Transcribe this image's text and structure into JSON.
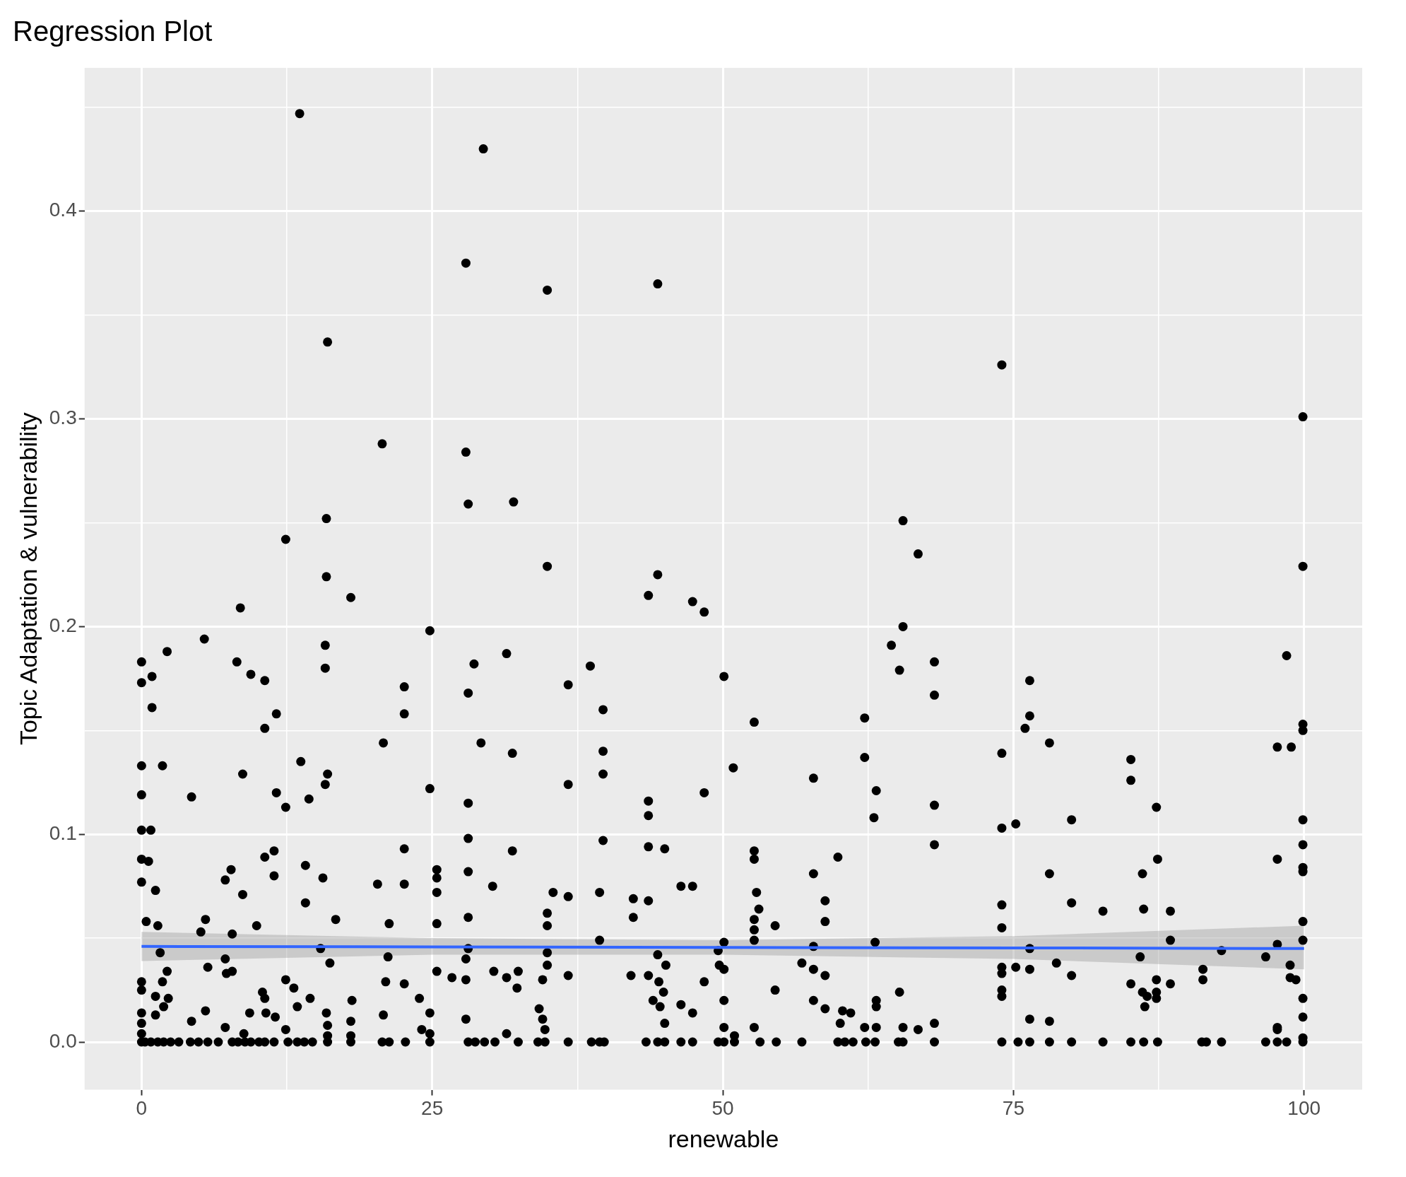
{
  "chart_data": {
    "type": "scatter",
    "title": "Regression Plot",
    "xlabel": "renewable",
    "ylabel": "Topic Adaptation & vulnerability",
    "marker": "circle",
    "grid": true,
    "xlim": [
      -4.9,
      105
    ],
    "ylim": [
      -0.023,
      0.469
    ],
    "xticks": [
      0,
      {
        "value": 12.5,
        "label": null
      },
      25,
      {
        "value": 37.5,
        "label": null
      },
      50,
      {
        "value": 62.5,
        "label": null
      },
      75,
      {
        "value": 87.5,
        "label": null
      },
      100
    ],
    "yticks": [
      {
        "value": 0,
        "label": "0.0"
      },
      {
        "value": 0.05,
        "label": null
      },
      {
        "value": 0.1,
        "label": "0.1"
      },
      {
        "value": 0.15,
        "label": null
      },
      {
        "value": 0.2,
        "label": "0.2"
      },
      {
        "value": 0.25,
        "label": null
      },
      {
        "value": 0.3,
        "label": "0.3"
      },
      {
        "value": 0.35,
        "label": null
      },
      {
        "value": 0.4,
        "label": "0.4"
      },
      {
        "value": 0.45,
        "label": null
      }
    ],
    "series": [
      {
        "type": "scatter",
        "color": "#000000",
        "x": [
          13.6,
          29.4,
          27.9,
          34.9,
          44.4,
          16.0,
          74.0,
          99.9,
          20.7,
          27.9,
          28.1,
          32.0,
          65.5,
          15.9,
          12.4,
          66.8,
          34.9,
          99.9,
          44.4,
          15.9,
          18.0,
          43.6,
          47.4,
          48.4,
          8.5,
          65.5,
          24.8,
          5.4,
          2.2,
          0,
          8.2,
          28.6,
          38.6,
          68.2,
          98.5,
          15.8,
          64.5,
          0.9,
          9.4,
          10.6,
          0,
          15.8,
          65.2,
          36.7,
          50.1,
          31.4,
          22.6,
          76.4,
          28.1,
          68.2,
          0.9,
          39.7,
          11.6,
          22.6,
          76.4,
          62.2,
          52.7,
          99.9,
          10.6,
          76.0,
          99.9,
          78.1,
          20.8,
          29.2,
          97.7,
          98.9,
          39.7,
          74.0,
          31.9,
          0,
          1.8,
          13.7,
          62.2,
          85.1,
          50.9,
          39.7,
          8.7,
          16.0,
          57.8,
          85.1,
          15.8,
          36.7,
          24.8,
          63.2,
          11.6,
          48.4,
          0,
          4.3,
          14.4,
          43.6,
          28.1,
          12.4,
          87.3,
          68.2,
          43.6,
          63.0,
          80.0,
          99.9,
          75.2,
          74.0,
          0,
          0.8,
          28.1,
          39.7,
          99.9,
          68.2,
          22.6,
          43.6,
          45.0,
          31.9,
          11.4,
          52.7,
          59.9,
          10.6,
          87.4,
          0,
          97.7,
          0.6,
          52.7,
          14.1,
          99.9,
          99.9,
          7.7,
          25.4,
          57.8,
          28.1,
          78.1,
          86.1,
          11.4,
          15.6,
          25.4,
          0,
          7.2,
          20.3,
          22.6,
          30.2,
          47.4,
          46.4,
          1.2,
          35.4,
          52.9,
          25.4,
          39.4,
          36.7,
          8.7,
          43.6,
          42.3,
          58.8,
          80.0,
          14.1,
          74.0,
          82.7,
          86.2,
          88.5,
          53.1,
          34.9,
          28.1,
          16.7,
          42.3,
          58.8,
          5.5,
          52.7,
          99.9,
          0.4,
          21.3,
          25.4,
          9.9,
          34.9,
          54.5,
          74.0,
          1.4,
          5.1,
          52.7,
          7.8,
          99.9,
          88.5,
          39.4,
          50.1,
          63.1,
          52.7,
          28.1,
          76.4,
          15.4,
          97.7,
          57.8,
          92.9,
          49.6,
          1.6,
          34.9,
          44.4,
          85.9,
          21.2,
          96.7,
          7.2,
          16.2,
          27.9,
          56.8,
          78.7,
          45.1,
          98.8,
          49.7,
          5.7,
          75.2,
          34.9,
          74.0,
          76.4,
          57.8,
          50.1,
          91.3,
          25.4,
          30.3,
          32.4,
          7.8,
          2.2,
          74.0,
          7.3,
          26.7,
          31.4,
          36.7,
          42.1,
          43.6,
          58.8,
          80.0,
          98.8,
          99.3,
          91.3,
          21.0,
          12.4,
          48.4,
          27.9,
          44.5,
          85.1,
          88.5,
          87.3,
          1.8,
          0,
          22.6,
          34.5,
          13.1,
          32.3,
          54.5,
          74.0,
          44.9,
          65.2,
          86.1,
          0,
          10.4,
          87.3,
          74.0,
          86.5,
          99.9,
          2.3,
          14.5,
          23.9,
          10.6,
          18.1,
          1.2,
          50.1,
          63.2,
          57.8,
          87.3,
          44.0,
          46.4,
          13.4,
          44.6,
          86.3,
          1.9,
          63.2,
          5.5,
          34.2,
          58.8,
          60.3,
          9.3,
          10.7,
          61.0,
          24.8,
          1.2,
          15.9,
          20.8,
          99.9,
          0,
          11.5,
          47.4,
          34.5,
          27.9,
          76.4,
          78.1,
          4.3,
          18.0,
          68.2,
          45.0,
          60.1,
          16.0,
          0,
          7.2,
          52.7,
          62.2,
          97.7,
          66.8,
          65.5,
          34.7,
          24.1,
          50.1,
          12.4,
          63.2,
          97.7,
          31.4,
          8.8,
          24.8,
          0,
          51.0,
          99.9,
          18.0,
          16.0,
          0,
          0.3,
          0.8,
          1.4,
          1.9,
          2.5,
          3.2,
          4.2,
          4.9,
          5.7,
          6.6,
          7.8,
          8.3,
          8.9,
          9.4,
          10.1,
          10.6,
          11.4,
          12.6,
          13.4,
          14.0,
          14.7,
          16.0,
          18.0,
          20.7,
          21.3,
          22.7,
          24.8,
          28.1,
          28.7,
          29.5,
          30.4,
          32.4,
          34.1,
          34.7,
          36.7,
          38.7,
          39.4,
          39.8,
          43.4,
          44.4,
          45.0,
          46.4,
          47.4,
          49.6,
          50.1,
          51.0,
          53.2,
          54.6,
          56.8,
          59.9,
          60.5,
          61.2,
          62.3,
          63.1,
          65.1,
          65.5,
          68.2,
          74.0,
          75.4,
          76.4,
          78.1,
          80.0,
          82.7,
          85.1,
          86.2,
          87.4,
          91.2,
          91.6,
          92.9,
          96.7,
          97.7,
          98.5,
          99.9
        ],
        "values": [
          0.447,
          0.43,
          0.375,
          0.362,
          0.365,
          0.337,
          0.326,
          0.301,
          0.288,
          0.284,
          0.259,
          0.26,
          0.251,
          0.252,
          0.242,
          0.235,
          0.229,
          0.229,
          0.225,
          0.224,
          0.214,
          0.215,
          0.212,
          0.207,
          0.209,
          0.2,
          0.198,
          0.194,
          0.188,
          0.183,
          0.183,
          0.182,
          0.181,
          0.183,
          0.186,
          0.191,
          0.191,
          0.176,
          0.177,
          0.174,
          0.173,
          0.18,
          0.179,
          0.172,
          0.176,
          0.187,
          0.171,
          0.174,
          0.168,
          0.167,
          0.161,
          0.16,
          0.158,
          0.158,
          0.157,
          0.156,
          0.154,
          0.153,
          0.151,
          0.151,
          0.15,
          0.144,
          0.144,
          0.144,
          0.142,
          0.142,
          0.14,
          0.139,
          0.139,
          0.133,
          0.133,
          0.135,
          0.137,
          0.136,
          0.132,
          0.129,
          0.129,
          0.129,
          0.127,
          0.126,
          0.124,
          0.124,
          0.122,
          0.121,
          0.12,
          0.12,
          0.119,
          0.118,
          0.117,
          0.116,
          0.115,
          0.113,
          0.113,
          0.114,
          0.109,
          0.108,
          0.107,
          0.107,
          0.105,
          0.103,
          0.102,
          0.102,
          0.098,
          0.097,
          0.095,
          0.095,
          0.093,
          0.094,
          0.093,
          0.092,
          0.092,
          0.092,
          0.089,
          0.089,
          0.088,
          0.088,
          0.088,
          0.087,
          0.088,
          0.085,
          0.084,
          0.082,
          0.083,
          0.083,
          0.081,
          0.082,
          0.081,
          0.081,
          0.08,
          0.079,
          0.079,
          0.077,
          0.078,
          0.076,
          0.076,
          0.075,
          0.075,
          0.075,
          0.073,
          0.072,
          0.072,
          0.072,
          0.072,
          0.07,
          0.071,
          0.068,
          0.069,
          0.068,
          0.067,
          0.067,
          0.066,
          0.063,
          0.064,
          0.063,
          0.064,
          0.062,
          0.06,
          0.059,
          0.06,
          0.058,
          0.059,
          0.059,
          0.058,
          0.058,
          0.057,
          0.057,
          0.056,
          0.056,
          0.056,
          0.055,
          0.056,
          0.053,
          0.054,
          0.052,
          0.049,
          0.049,
          0.049,
          0.048,
          0.048,
          0.049,
          0.045,
          0.045,
          0.045,
          0.047,
          0.046,
          0.044,
          0.044,
          0.043,
          0.043,
          0.042,
          0.041,
          0.041,
          0.041,
          0.04,
          0.038,
          0.04,
          0.038,
          0.038,
          0.037,
          0.037,
          0.037,
          0.036,
          0.036,
          0.037,
          0.036,
          0.035,
          0.035,
          0.035,
          0.035,
          0.034,
          0.034,
          0.034,
          0.034,
          0.034,
          0.033,
          0.033,
          0.031,
          0.031,
          0.032,
          0.032,
          0.032,
          0.032,
          0.032,
          0.031,
          0.03,
          0.03,
          0.029,
          0.03,
          0.029,
          0.03,
          0.029,
          0.028,
          0.028,
          0.03,
          0.029,
          0.029,
          0.028,
          0.03,
          0.026,
          0.026,
          0.025,
          0.025,
          0.024,
          0.024,
          0.024,
          0.025,
          0.024,
          0.024,
          0.022,
          0.022,
          0.021,
          0.021,
          0.021,
          0.021,
          0.021,
          0.02,
          0.022,
          0.02,
          0.02,
          0.02,
          0.021,
          0.02,
          0.018,
          0.017,
          0.017,
          0.017,
          0.017,
          0.017,
          0.015,
          0.016,
          0.016,
          0.015,
          0.014,
          0.014,
          0.014,
          0.014,
          0.013,
          0.014,
          0.013,
          0.012,
          0.014,
          0.012,
          0.014,
          0.011,
          0.011,
          0.011,
          0.01,
          0.01,
          0.01,
          0.009,
          0.009,
          0.009,
          0.008,
          0.009,
          0.007,
          0.007,
          0.007,
          0.007,
          0.006,
          0.007,
          0.006,
          0.006,
          0.007,
          0.006,
          0.007,
          0.006,
          0.004,
          0.004,
          0.004,
          0.004,
          0.003,
          0.002,
          0.003,
          0.003,
          0,
          0,
          0,
          0,
          0,
          0,
          0,
          0,
          0,
          0,
          0,
          0,
          0,
          0,
          0,
          0,
          0,
          0,
          0,
          0,
          0,
          0,
          0,
          0,
          0,
          0,
          0,
          0,
          0,
          0,
          0,
          0,
          0,
          0,
          0,
          0,
          0,
          0,
          0,
          0,
          0,
          0,
          0,
          0,
          0,
          0,
          0,
          0,
          0,
          0,
          0,
          0,
          0,
          0,
          0,
          0,
          0,
          0,
          0,
          0,
          0,
          0,
          0,
          0,
          0,
          0,
          0,
          0,
          0,
          0,
          0,
          0,
          0,
          0
        ]
      },
      {
        "type": "line",
        "color": "#3366ff",
        "marker": "none",
        "x": [
          0,
          25,
          50,
          75,
          100
        ],
        "values": [
          0.046,
          0.0458,
          0.0455,
          0.0453,
          0.045
        ],
        "lower": [
          0.039,
          0.042,
          0.042,
          0.04,
          0.035
        ],
        "upper": [
          0.053,
          0.05,
          0.049,
          0.051,
          0.056
        ]
      }
    ]
  }
}
